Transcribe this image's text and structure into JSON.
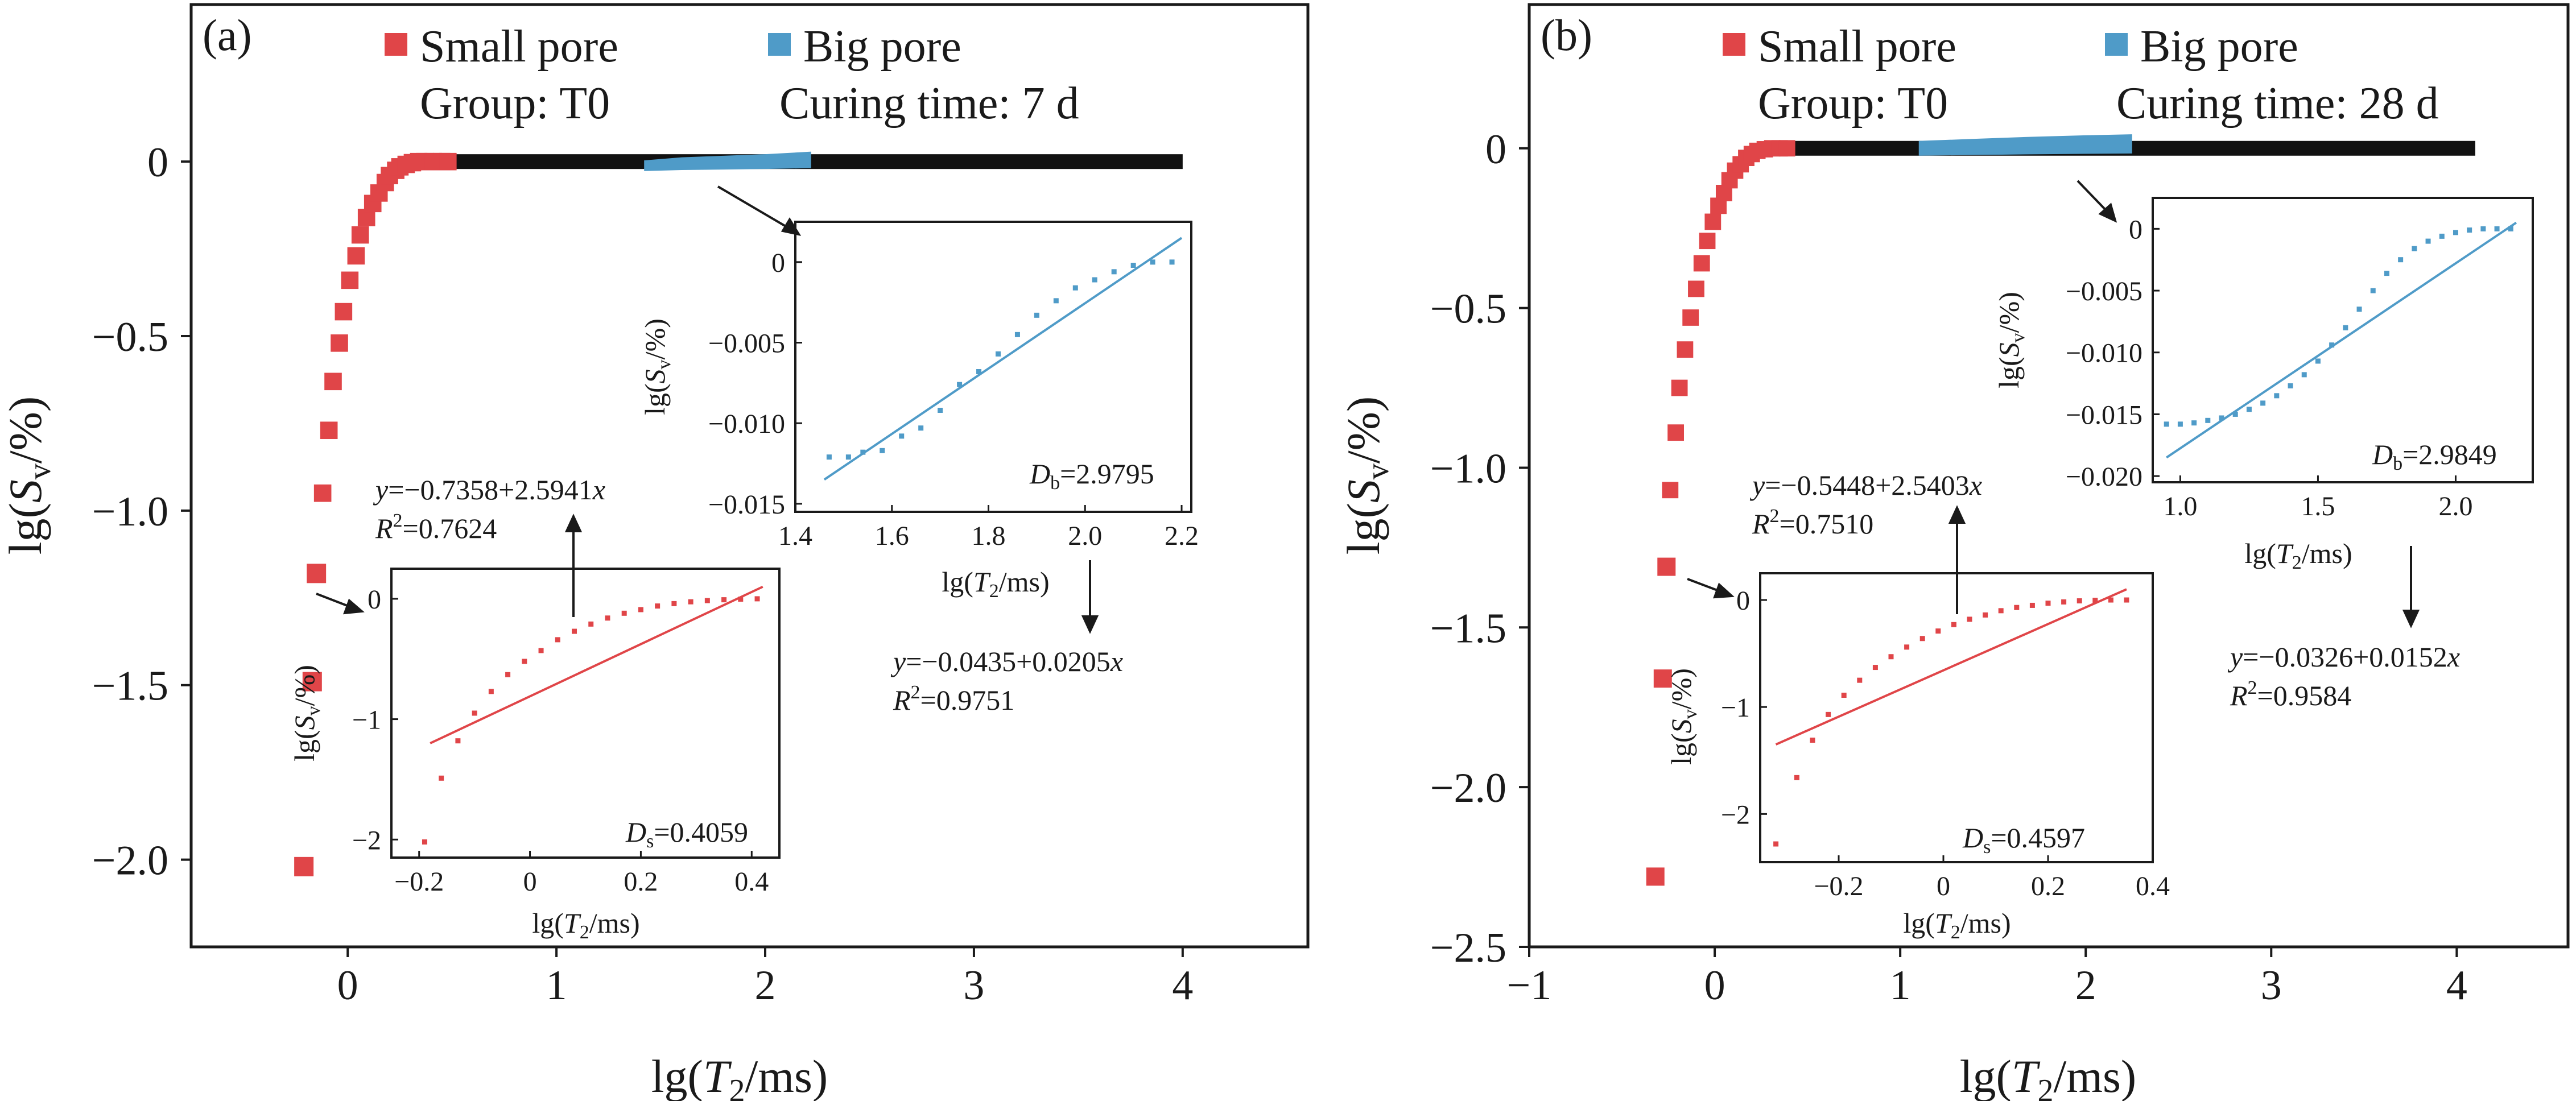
{
  "chart_data": [
    {
      "type": "scatter",
      "panel_label": "(a)",
      "xlabel_prefix": "lg(",
      "xlabel_var": "T",
      "xlabel_sub": "2",
      "xlabel_suffix": "/ms)",
      "ylabel_prefix": "lg(",
      "ylabel_var": "S",
      "ylabel_sub": "v",
      "ylabel_suffix": "/%)",
      "xlim": [
        -0.75,
        4.6
      ],
      "ylim": [
        -2.25,
        0.45
      ],
      "xticks": [
        0,
        1,
        2,
        3,
        4
      ],
      "xtick_labels": [
        "0",
        "1",
        "2",
        "3",
        "4"
      ],
      "yticks": [
        0,
        -0.5,
        -1.0,
        -1.5,
        -2.0
      ],
      "ytick_labels": [
        "0",
        "−0.5",
        "−1.0",
        "−1.5",
        "−2.0"
      ],
      "legend": [
        {
          "label": "Small pore",
          "color": "#e04548"
        },
        {
          "label": "Big pore",
          "color": "#4f9bc8"
        }
      ],
      "group_text": "Group: T0",
      "curing_text": "Curing time: 7 d",
      "colors": {
        "small": "#e04548",
        "big": "#4f9bc8",
        "plateau": "#111111",
        "fit_small": "#e04548",
        "fit_big": "#4f9bc8"
      },
      "series": [
        {
          "name": "Small pore",
          "x": [
            -0.21,
            -0.17,
            -0.15,
            -0.12,
            -0.09,
            -0.07,
            -0.04,
            -0.02,
            0.01,
            0.04,
            0.06,
            0.09,
            0.12,
            0.15,
            0.18,
            0.2,
            0.23,
            0.25,
            0.28,
            0.31,
            0.34,
            0.37,
            0.41,
            0.45,
            0.48
          ],
          "y": [
            -2.02,
            -1.49,
            -1.18,
            -0.95,
            -0.77,
            -0.63,
            -0.52,
            -0.43,
            -0.34,
            -0.27,
            -0.21,
            -0.16,
            -0.12,
            -0.09,
            -0.06,
            -0.04,
            -0.025,
            -0.015,
            -0.008,
            -0.003,
            0,
            0,
            0,
            0,
            0
          ]
        },
        {
          "name": "Plateau",
          "x": [
            0.5,
            1.42,
            2.22,
            4.0
          ],
          "y": [
            0,
            0,
            0,
            0
          ]
        },
        {
          "name": "Big pore",
          "x": [
            1.42,
            1.6,
            1.8,
            2.0,
            2.22
          ],
          "y": [
            -0.012,
            -0.006,
            -0.003,
            0,
            0.005
          ]
        }
      ],
      "insets": [
        {
          "name": "small-pore-inset",
          "xlim": [
            -0.25,
            0.45
          ],
          "ylim": [
            -2.15,
            0.25
          ],
          "xticks": [
            -0.2,
            0,
            0.2,
            0.4
          ],
          "xtick_labels": [
            "−0.2",
            "0",
            "0.2",
            "0.4"
          ],
          "yticks": [
            0,
            -1,
            -2
          ],
          "ytick_labels": [
            "0",
            "−1",
            "−2"
          ],
          "points_x": [
            -0.19,
            -0.16,
            -0.13,
            -0.1,
            -0.07,
            -0.04,
            -0.01,
            0.02,
            0.05,
            0.08,
            0.11,
            0.14,
            0.17,
            0.2,
            0.23,
            0.26,
            0.29,
            0.32,
            0.35,
            0.38,
            0.41
          ],
          "points_y": [
            -2.02,
            -1.49,
            -1.18,
            -0.95,
            -0.77,
            -0.63,
            -0.52,
            -0.43,
            -0.34,
            -0.27,
            -0.21,
            -0.16,
            -0.12,
            -0.09,
            -0.06,
            -0.04,
            -0.025,
            -0.015,
            -0.008,
            -0.003,
            0
          ],
          "fit_line": {
            "x": [
              -0.18,
              0.42
            ],
            "y": [
              -1.2,
              0.1
            ]
          },
          "d_label_var": "D",
          "d_label_sub": "s",
          "d_label_value": "=0.4059",
          "eq_var": "y",
          "eq_text": "=−0.7358+2.5941",
          "eq_x": "x",
          "r2_base": "R",
          "r2_sup": "2",
          "r2_text": "=0.7624"
        },
        {
          "name": "big-pore-inset",
          "xlim": [
            1.4,
            2.22
          ],
          "ylim": [
            -0.0155,
            0.0025
          ],
          "xticks": [
            1.4,
            1.6,
            1.8,
            2.0,
            2.2
          ],
          "xtick_labels": [
            "1.4",
            "1.6",
            "1.8",
            "2.0",
            "2.2"
          ],
          "yticks": [
            0,
            -0.005,
            -0.01,
            -0.015
          ],
          "ytick_labels": [
            "0",
            "−0.005",
            "−0.010",
            "−0.015"
          ],
          "points_x": [
            1.47,
            1.51,
            1.54,
            1.58,
            1.62,
            1.66,
            1.7,
            1.74,
            1.78,
            1.82,
            1.86,
            1.9,
            1.94,
            1.98,
            2.02,
            2.06,
            2.1,
            2.14,
            2.18
          ],
          "points_y": [
            -0.0121,
            -0.0121,
            -0.0118,
            -0.0117,
            -0.0108,
            -0.0103,
            -0.0092,
            -0.0076,
            -0.0068,
            -0.0057,
            -0.0045,
            -0.0033,
            -0.0024,
            -0.0016,
            -0.0011,
            -0.0006,
            -0.0002,
            0,
            0
          ],
          "fit_line": {
            "x": [
              1.46,
              2.2
            ],
            "y": [
              -0.0135,
              0.0015
            ]
          },
          "d_label_var": "D",
          "d_label_sub": "b",
          "d_label_value": "=2.9795",
          "eq_var": "y",
          "eq_text": "=−0.0435+0.0205",
          "eq_x": "x",
          "r2_base": "R",
          "r2_sup": "2",
          "r2_text": "=0.9751"
        }
      ]
    },
    {
      "type": "scatter",
      "panel_label": "(b)",
      "xlabel_prefix": "lg(",
      "xlabel_var": "T",
      "xlabel_sub": "2",
      "xlabel_suffix": "/ms)",
      "ylabel_prefix": "lg(",
      "ylabel_var": "S",
      "ylabel_sub": "v",
      "ylabel_suffix": "/%)",
      "xlim": [
        -1,
        4.6
      ],
      "ylim": [
        -2.5,
        0.45
      ],
      "xticks": [
        -1,
        0,
        1,
        2,
        3,
        4
      ],
      "xtick_labels": [
        "−1",
        "0",
        "1",
        "2",
        "3",
        "4"
      ],
      "yticks": [
        0,
        -0.5,
        -1.0,
        -1.5,
        -2.0,
        -2.5
      ],
      "ytick_labels": [
        "0",
        "−0.5",
        "−1.0",
        "−1.5",
        "−2.0",
        "−2.5"
      ],
      "legend": [
        {
          "label": "Small pore",
          "color": "#e04548"
        },
        {
          "label": "Big pore",
          "color": "#4f9bc8"
        }
      ],
      "group_text": "Group: T0",
      "curing_text": "Curing time: 28 d",
      "colors": {
        "small": "#e04548",
        "big": "#4f9bc8",
        "plateau": "#111111",
        "fit_small": "#e04548",
        "fit_big": "#4f9bc8"
      },
      "series": [
        {
          "name": "Small pore",
          "x": [
            -0.32,
            -0.28,
            -0.26,
            -0.24,
            -0.21,
            -0.19,
            -0.16,
            -0.13,
            -0.1,
            -0.07,
            -0.04,
            -0.01,
            0.02,
            0.05,
            0.08,
            0.11,
            0.14,
            0.17,
            0.2,
            0.23,
            0.27,
            0.31,
            0.35,
            0.39
          ],
          "y": [
            -2.28,
            -1.66,
            -1.31,
            -1.07,
            -0.89,
            -0.75,
            -0.63,
            -0.53,
            -0.44,
            -0.36,
            -0.29,
            -0.23,
            -0.18,
            -0.14,
            -0.1,
            -0.07,
            -0.05,
            -0.03,
            -0.018,
            -0.008,
            -0.003,
            0,
            0,
            0
          ]
        },
        {
          "name": "Plateau",
          "x": [
            0.4,
            1.1,
            2.25,
            4.1
          ],
          "y": [
            0,
            0,
            0,
            0
          ]
        },
        {
          "name": "Big pore",
          "x": [
            1.1,
            1.4,
            1.7,
            2.0,
            2.25
          ],
          "y": [
            0.0,
            0.004,
            0.008,
            0.011,
            0.013
          ]
        }
      ],
      "insets": [
        {
          "name": "small-pore-inset",
          "xlim": [
            -0.35,
            0.4
          ],
          "ylim": [
            -2.45,
            0.25
          ],
          "xticks": [
            -0.2,
            0,
            0.2,
            0.4
          ],
          "xtick_labels": [
            "−0.2",
            "0",
            "0.2",
            "0.4"
          ],
          "yticks": [
            0,
            -1,
            -2
          ],
          "ytick_labels": [
            "0",
            "−1",
            "−2"
          ],
          "points_x": [
            -0.32,
            -0.28,
            -0.25,
            -0.22,
            -0.19,
            -0.16,
            -0.13,
            -0.1,
            -0.07,
            -0.04,
            -0.01,
            0.02,
            0.05,
            0.08,
            0.11,
            0.14,
            0.17,
            0.2,
            0.23,
            0.26,
            0.29,
            0.32,
            0.35
          ],
          "points_y": [
            -2.28,
            -1.66,
            -1.31,
            -1.07,
            -0.89,
            -0.75,
            -0.63,
            -0.53,
            -0.44,
            -0.36,
            -0.29,
            -0.23,
            -0.18,
            -0.14,
            -0.1,
            -0.07,
            -0.05,
            -0.03,
            -0.018,
            -0.008,
            -0.003,
            0,
            0
          ],
          "fit_line": {
            "x": [
              -0.32,
              0.35
            ],
            "y": [
              -1.35,
              0.1
            ]
          },
          "d_label_var": "D",
          "d_label_sub": "s",
          "d_label_value": "=0.4597",
          "eq_var": "y",
          "eq_text": "=−0.5448+2.5403",
          "eq_x": "x",
          "r2_base": "R",
          "r2_sup": "2",
          "r2_text": "=0.7510"
        },
        {
          "name": "big-pore-inset",
          "xlim": [
            0.9,
            2.28
          ],
          "ylim": [
            -0.0205,
            0.0025
          ],
          "xticks": [
            1.0,
            1.5,
            2.0
          ],
          "xtick_labels": [
            "1.0",
            "1.5",
            "2.0"
          ],
          "yticks": [
            0,
            -0.005,
            -0.01,
            -0.015,
            -0.02
          ],
          "ytick_labels": [
            "0",
            "−0.005",
            "−0.010",
            "−0.015",
            "−0.020"
          ],
          "points_x": [
            0.95,
            1.0,
            1.05,
            1.1,
            1.15,
            1.2,
            1.25,
            1.3,
            1.35,
            1.4,
            1.45,
            1.5,
            1.55,
            1.6,
            1.65,
            1.7,
            1.75,
            1.8,
            1.85,
            1.9,
            1.95,
            2.0,
            2.05,
            2.1,
            2.15,
            2.2
          ],
          "points_y": [
            -0.0158,
            -0.0158,
            -0.0157,
            -0.0155,
            -0.0153,
            -0.015,
            -0.0146,
            -0.0141,
            -0.0135,
            -0.0127,
            -0.0118,
            -0.0107,
            -0.0094,
            -0.008,
            -0.0065,
            -0.005,
            -0.0036,
            -0.0025,
            -0.0016,
            -0.001,
            -0.0006,
            -0.0003,
            -0.0001,
            0,
            0,
            0
          ],
          "fit_line": {
            "x": [
              0.95,
              2.22
            ],
            "y": [
              -0.0185,
              0.0005
            ]
          },
          "d_label_var": "D",
          "d_label_sub": "b",
          "d_label_value": "=2.9849",
          "eq_var": "y",
          "eq_text": "=−0.0326+0.0152",
          "eq_x": "x",
          "r2_base": "R",
          "r2_sup": "2",
          "r2_text": "=0.9584"
        }
      ]
    }
  ]
}
